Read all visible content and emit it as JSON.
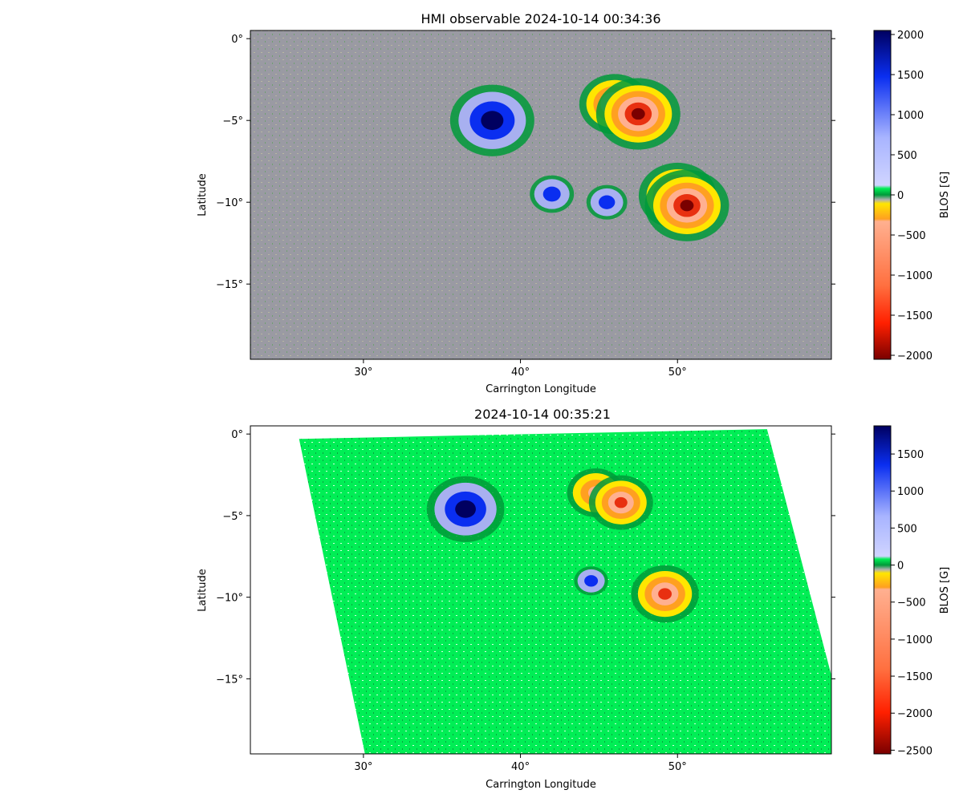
{
  "chart_data": [
    {
      "type": "heatmap",
      "title": "HMI observable 2024-10-14 00:34:36",
      "xlabel": "Carrington Longitude",
      "ylabel": "Latitude",
      "xlim": [
        22.8,
        59.8
      ],
      "ylim": [
        -19.6,
        0.5
      ],
      "xticks": [
        {
          "value": 30,
          "label": "30°"
        },
        {
          "value": 40,
          "label": "40°"
        },
        {
          "value": 50,
          "label": "50°"
        }
      ],
      "yticks": [
        {
          "value": 0,
          "label": "0°"
        },
        {
          "value": -5,
          "label": "−5°"
        },
        {
          "value": -10,
          "label": "−10°"
        },
        {
          "value": -15,
          "label": "−15°"
        }
      ],
      "colorbar": {
        "label": "BLOS [G]",
        "range": [
          -2050,
          2050
        ],
        "ticks": [
          {
            "value": 2000,
            "label": "2000"
          },
          {
            "value": 1500,
            "label": "1500"
          },
          {
            "value": 1000,
            "label": "1000"
          },
          {
            "value": 500,
            "label": "500"
          },
          {
            "value": 0,
            "label": "0"
          },
          {
            "value": -500,
            "label": "−500"
          },
          {
            "value": -1000,
            "label": "−1000"
          },
          {
            "value": -1500,
            "label": "−1500"
          },
          {
            "value": -2000,
            "label": "−2000"
          }
        ]
      },
      "features": [
        {
          "polarity": "positive",
          "lon": 38.2,
          "lat": -5.0,
          "peak": 1800
        },
        {
          "polarity": "negative",
          "lon": 46.0,
          "lat": -4.0,
          "peak": -1400
        },
        {
          "polarity": "negative",
          "lon": 47.5,
          "lat": -4.6,
          "peak": -1800
        },
        {
          "polarity": "negative",
          "lon": 50.0,
          "lat": -9.6,
          "peak": -1600
        },
        {
          "polarity": "negative",
          "lon": 50.6,
          "lat": -10.2,
          "peak": -1800
        },
        {
          "polarity": "positive",
          "lon": 45.5,
          "lat": -10.0,
          "peak": 500
        },
        {
          "polarity": "positive",
          "lon": 42.0,
          "lat": -9.5,
          "peak": 600
        }
      ]
    },
    {
      "type": "heatmap",
      "title": "2024-10-14 00:35:21",
      "xlabel": "Carrington Longitude",
      "ylabel": "Latitude",
      "xlim": [
        22.8,
        59.8
      ],
      "ylim": [
        -19.6,
        0.5
      ],
      "xticks": [
        {
          "value": 30,
          "label": "30°"
        },
        {
          "value": 40,
          "label": "40°"
        },
        {
          "value": 50,
          "label": "50°"
        }
      ],
      "yticks": [
        {
          "value": 0,
          "label": "0°"
        },
        {
          "value": -5,
          "label": "−5°"
        },
        {
          "value": -10,
          "label": "−10°"
        },
        {
          "value": -15,
          "label": "−15°"
        }
      ],
      "colorbar": {
        "label": "BLOS [G]",
        "range": [
          -2550,
          1880
        ],
        "ticks": [
          {
            "value": 1500,
            "label": "1500"
          },
          {
            "value": 1000,
            "label": "1000"
          },
          {
            "value": 500,
            "label": "500"
          },
          {
            "value": 0,
            "label": "0"
          },
          {
            "value": -500,
            "label": "−500"
          },
          {
            "value": -1000,
            "label": "−1000"
          },
          {
            "value": -1500,
            "label": "−1500"
          },
          {
            "value": -2000,
            "label": "−2000"
          },
          {
            "value": -2500,
            "label": "−2500"
          }
        ]
      },
      "data_region": [
        [
          25.9,
          -0.3
        ],
        [
          55.7,
          0.3
        ],
        [
          59.8,
          -14.8
        ],
        [
          59.8,
          -19.6
        ],
        [
          30.1,
          -19.6
        ]
      ],
      "features": [
        {
          "polarity": "positive",
          "lon": 36.5,
          "lat": -4.6,
          "peak": 1600
        },
        {
          "polarity": "negative",
          "lon": 44.8,
          "lat": -3.6,
          "peak": -1000
        },
        {
          "polarity": "negative",
          "lon": 46.4,
          "lat": -4.2,
          "peak": -1200
        },
        {
          "polarity": "negative",
          "lon": 49.2,
          "lat": -9.8,
          "peak": -1300
        },
        {
          "polarity": "positive",
          "lon": 44.5,
          "lat": -9.0,
          "peak": 300
        }
      ]
    }
  ],
  "colors": {
    "grey": "#9a9aa3",
    "green": "#00ee55",
    "dark_green": "#009a3a",
    "light_blue": "#a8b0f0",
    "blue": "#0a2ef0",
    "navy": "#000060",
    "yellow": "#ffe600",
    "orange": "#ffa020",
    "salmon": "#ffb090",
    "red": "#e83010",
    "dark_red": "#7a0000"
  }
}
